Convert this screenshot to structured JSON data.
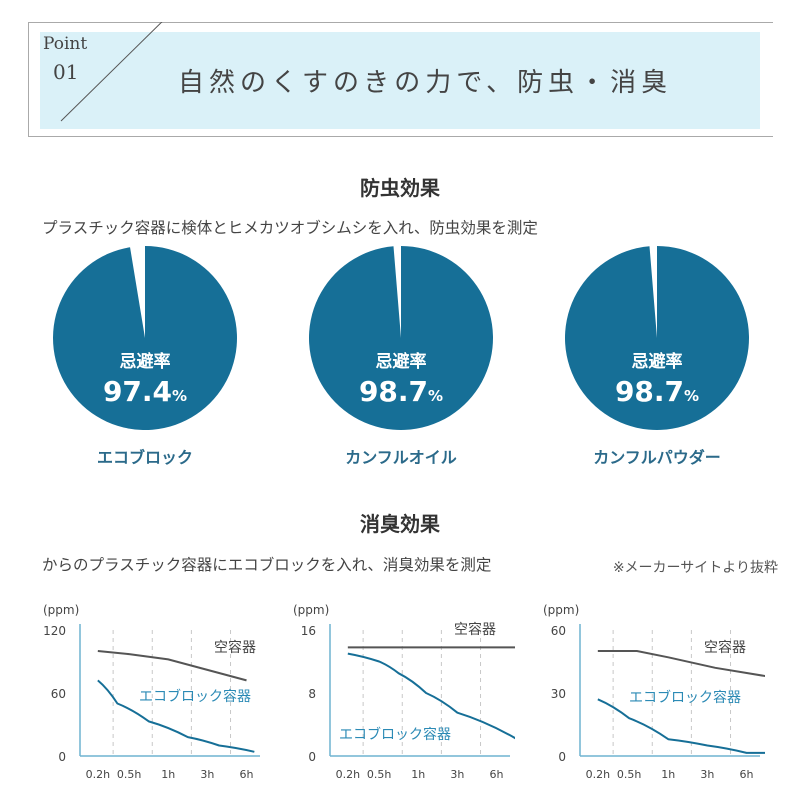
{
  "header": {
    "point_label": "Point",
    "point_number": "01",
    "headline": "自然のくすのきの力で、防虫・消臭"
  },
  "insect": {
    "title": "防虫効果",
    "description": "プラスチック容器に検体とヒメカツオブシムシを入れ、防虫効果を測定"
  },
  "deodor": {
    "title": "消臭効果",
    "description": "からのプラスチック容器にエコブロックを入れ、消臭効果を測定",
    "source_note": "※メーカーサイトより抜粋"
  },
  "colors": {
    "accent": "#166f97",
    "light_blue": "#daf1f8",
    "gray_line": "#555555",
    "label_blue": "#2b6a8a"
  },
  "chart_data": [
    {
      "type": "pie",
      "metric_label": "忌避率",
      "value": 97.4,
      "value_text": "97.4",
      "unit": "%",
      "name": "エコブロック"
    },
    {
      "type": "pie",
      "metric_label": "忌避率",
      "value": 98.7,
      "value_text": "98.7",
      "unit": "%",
      "name": "カンフルオイル"
    },
    {
      "type": "pie",
      "metric_label": "忌避率",
      "value": 98.7,
      "value_text": "98.7",
      "unit": "%",
      "name": "カンフルパウダー"
    },
    {
      "type": "line",
      "ylabel": "(ppm)",
      "ylim": [
        0,
        120
      ],
      "yticks": [
        "120",
        "60",
        "0"
      ],
      "categories": [
        "0.2h",
        "0.5h",
        "1h",
        "3h",
        "6h"
      ],
      "series": [
        {
          "name": "空容器",
          "label": "空容器",
          "x": [
            0.2,
            1,
            2,
            3,
            4
          ],
          "values": [
            100,
            97,
            92,
            82,
            72
          ]
        },
        {
          "name": "エコブロック容器",
          "label": "エコブロック容器",
          "x": [
            0.2,
            0.7,
            1.5,
            2.5,
            3.3,
            4.2
          ],
          "values": [
            72,
            50,
            33,
            18,
            10,
            4
          ]
        }
      ]
    },
    {
      "type": "line",
      "ylabel": "(ppm)",
      "ylim": [
        0,
        16
      ],
      "yticks": [
        "16",
        "8",
        "0"
      ],
      "categories": [
        "0.2h",
        "0.5h",
        "1h",
        "3h",
        "6h"
      ],
      "series": [
        {
          "name": "空容器",
          "label": "空容器",
          "x": [
            0.2,
            4.5
          ],
          "values": [
            13.8,
            13.8
          ]
        },
        {
          "name": "エコブロック容器",
          "label": "エコブロック容器",
          "x": [
            0.2,
            1,
            1.5,
            2.2,
            3,
            4.5
          ],
          "values": [
            13,
            12,
            10.5,
            8,
            5.5,
            2.2
          ]
        }
      ]
    },
    {
      "type": "line",
      "ylabel": "(ppm)",
      "ylim": [
        0,
        60
      ],
      "yticks": [
        "60",
        "30",
        "0"
      ],
      "categories": [
        "0.2h",
        "0.5h",
        "1h",
        "3h",
        "6h"
      ],
      "series": [
        {
          "name": "空容器",
          "label": "空容器",
          "x": [
            0.2,
            1.2,
            2,
            3.2,
            4.5
          ],
          "values": [
            50,
            50,
            47,
            42,
            38
          ]
        },
        {
          "name": "エコブロック容器",
          "label": "エコブロック容器",
          "x": [
            0.2,
            1,
            2,
            3,
            4,
            4.5
          ],
          "values": [
            27,
            18,
            8,
            5,
            1.5,
            1.5
          ]
        }
      ]
    }
  ]
}
